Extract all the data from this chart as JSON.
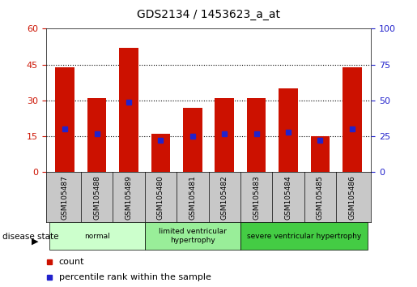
{
  "title": "GDS2134 / 1453623_a_at",
  "samples": [
    "GSM105487",
    "GSM105488",
    "GSM105489",
    "GSM105480",
    "GSM105481",
    "GSM105482",
    "GSM105483",
    "GSM105484",
    "GSM105485",
    "GSM105486"
  ],
  "counts": [
    44,
    31,
    52,
    16,
    27,
    31,
    31,
    35,
    15,
    44
  ],
  "percentile_ranks": [
    30,
    27,
    49,
    22,
    25,
    27,
    27,
    28,
    22,
    30
  ],
  "groups": [
    {
      "label": "normal",
      "start": 0,
      "end": 3,
      "color": "#ccffcc"
    },
    {
      "label": "limited ventricular\nhypertrophy",
      "start": 3,
      "end": 6,
      "color": "#99ee99"
    },
    {
      "label": "severe ventricular hypertrophy",
      "start": 6,
      "end": 10,
      "color": "#44cc44"
    }
  ],
  "ylim_left": [
    0,
    60
  ],
  "ylim_right": [
    0,
    100
  ],
  "yticks_left": [
    0,
    15,
    30,
    45,
    60
  ],
  "yticks_right": [
    0,
    25,
    50,
    75,
    100
  ],
  "bar_color": "#cc1100",
  "dot_color": "#2222cc",
  "grid_color": "#000000",
  "label_color_left": "#cc1100",
  "label_color_right": "#2222cc",
  "bg_plot": "#ffffff",
  "bg_sample": "#c8c8c8",
  "disease_state_label": "disease state"
}
